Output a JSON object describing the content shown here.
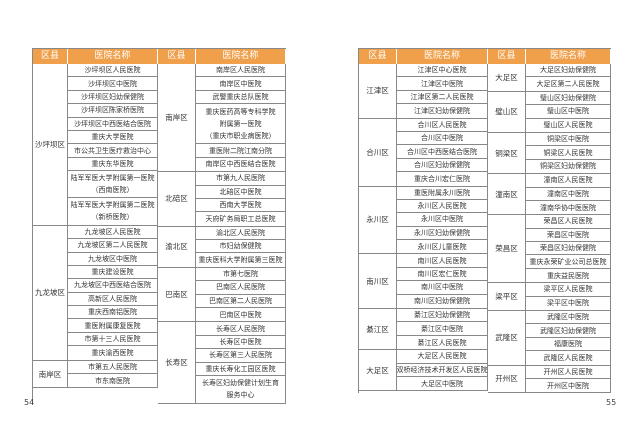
{
  "colors": {
    "header_bg": "#F0A04B",
    "border": "#888888"
  },
  "pages": [
    {
      "page_number": "54",
      "header": [
        "区县",
        "医院名称",
        "区县",
        "医院名称"
      ],
      "left": [
        {
          "district": "沙坪坝区",
          "hospitals": [
            [
              "沙坪坝区人民医院"
            ],
            [
              "沙坪坝区中医院"
            ],
            [
              "沙坪坝区妇幼保健院"
            ],
            [
              "沙坪坝区陈家桥医院"
            ],
            [
              "沙坪坝区中西医结合医院"
            ],
            [
              "重庆大学医院"
            ],
            [
              "市公共卫生医疗救治中心"
            ],
            [
              "重庆东华医院"
            ],
            [
              "陆军军医大学附属第一医院",
              "（西南医院）"
            ],
            [
              "陆军军医大学附属第二医院",
              "（新桥医院）"
            ]
          ]
        },
        {
          "district": "九龙坡区",
          "hospitals": [
            [
              "九龙坡区人民医院"
            ],
            [
              "九龙坡区第二人民医院"
            ],
            [
              "九龙坡区中医院"
            ],
            [
              "重庆建设医院"
            ],
            [
              "九龙坡区中西医结合医院"
            ],
            [
              "高新区人民医院"
            ],
            [
              "重庆西南铝医院"
            ],
            [
              "重医附属康复医院"
            ],
            [
              "市第十三人民医院"
            ],
            [
              "重庆渝西医院"
            ]
          ]
        },
        {
          "district": "南岸区",
          "hospitals": [
            [
              "市第五人民医院"
            ],
            [
              "市东南医院"
            ]
          ]
        }
      ],
      "right": [
        {
          "district": "南岸区",
          "hospitals": [
            [
              "南岸区人民医院"
            ],
            [
              "南岸区中医院"
            ],
            [
              "武警重庆总队医院"
            ],
            [
              "重庆医药高等专科学院",
              "附属第一医院",
              "（重庆市职业病医院）"
            ],
            [
              "重医附二院江南分院"
            ],
            [
              "南岸区中西医结合医院"
            ]
          ]
        },
        {
          "district": "北碚区",
          "hospitals": [
            [
              "市第九人民医院"
            ],
            [
              "北碚区中医院"
            ],
            [
              "西南大学医院"
            ],
            [
              "天府矿务局职工总医院"
            ]
          ]
        },
        {
          "district": "渝北区",
          "hospitals": [
            [
              "渝北区人民医院"
            ],
            [
              "市妇幼保健院"
            ],
            [
              "重庆医科大学附属第三医院"
            ]
          ]
        },
        {
          "district": "巴南区",
          "hospitals": [
            [
              "市第七医院"
            ],
            [
              "巴南区人民医院"
            ],
            [
              "巴南区第二人民医院"
            ],
            [
              "巴南区中医院"
            ]
          ]
        },
        {
          "district": "长寿区",
          "hospitals": [
            [
              "长寿区人民医院"
            ],
            [
              "长寿区中医院"
            ],
            [
              "长寿区第三人民医院"
            ],
            [
              "重庆长寿化工园区医院"
            ],
            [
              "长寿区妇幼保健计划生育",
              "服务中心"
            ]
          ]
        }
      ]
    },
    {
      "page_number": "55",
      "header": [
        "区县",
        "医院名称",
        "区县",
        "医院名称"
      ],
      "left": [
        {
          "district": "江津区",
          "hospitals": [
            [
              "江津区中心医院"
            ],
            [
              "江津区中医院"
            ],
            [
              "江津区第二人民医院"
            ],
            [
              "江津区妇幼保健院"
            ]
          ]
        },
        {
          "district": "合川区",
          "hospitals": [
            [
              "合川区人民医院"
            ],
            [
              "合川区中医院"
            ],
            [
              "合川区中西医结合医院"
            ],
            [
              "合川区妇幼保健院"
            ],
            [
              "重庆合川宏仁医院"
            ]
          ]
        },
        {
          "district": "永川区",
          "hospitals": [
            [
              "重医附属永川医院"
            ],
            [
              "永川区人民医院"
            ],
            [
              "永川区中医院"
            ],
            [
              "永川区妇幼保健院"
            ],
            [
              "永川区儿童医院"
            ]
          ]
        },
        {
          "district": "南川区",
          "hospitals": [
            [
              "南川区人民医院"
            ],
            [
              "南川区宏仁医院"
            ],
            [
              "南川区中医院"
            ],
            [
              "南川区妇幼保健院"
            ]
          ]
        },
        {
          "district": "綦江区",
          "hospitals": [
            [
              "綦江区妇幼保健院"
            ],
            [
              "綦江区中医院"
            ],
            [
              "綦江区人民医院"
            ]
          ]
        },
        {
          "district": "大足区",
          "hospitals": [
            [
              "大足区人民医院"
            ],
            [
              "双桥经济技术开发区人民医院"
            ],
            [
              "大足区中医院"
            ]
          ]
        }
      ],
      "right": [
        {
          "district": "大足区",
          "hospitals": [
            [
              "大足区妇幼保健院"
            ],
            [
              "大足区第二人民医院"
            ]
          ]
        },
        {
          "district": "璧山区",
          "hospitals": [
            [
              "璧山区妇幼保健院"
            ],
            [
              "璧山区中医院"
            ],
            [
              "璧山区人民医院"
            ]
          ]
        },
        {
          "district": "铜梁区",
          "hospitals": [
            [
              "铜梁区中医院"
            ],
            [
              "铜梁区人民医院"
            ],
            [
              "铜梁区妇幼保健院"
            ]
          ]
        },
        {
          "district": "潼南区",
          "hospitals": [
            [
              "潼南区人民医院"
            ],
            [
              "潼南区中医院"
            ],
            [
              "潼南华协中医医院"
            ]
          ]
        },
        {
          "district": "荣昌区",
          "hospitals": [
            [
              "荣昌区人民医院"
            ],
            [
              "荣昌区中医院"
            ],
            [
              "荣昌区妇幼保健院"
            ],
            [
              "重庆永荣矿业公司总医院"
            ],
            [
              "重庆益民医院"
            ]
          ]
        },
        {
          "district": "梁平区",
          "hospitals": [
            [
              "梁平区人民医院"
            ],
            [
              "梁平区中医院"
            ]
          ]
        },
        {
          "district": "武隆区",
          "hospitals": [
            [
              "武隆区中医院"
            ],
            [
              "武隆区妇幼保健院"
            ],
            [
              "福康医院"
            ],
            [
              "武隆区人民医院"
            ]
          ]
        },
        {
          "district": "开州区",
          "hospitals": [
            [
              "开州区人民医院"
            ],
            [
              "开州区中医院"
            ]
          ]
        }
      ]
    }
  ]
}
